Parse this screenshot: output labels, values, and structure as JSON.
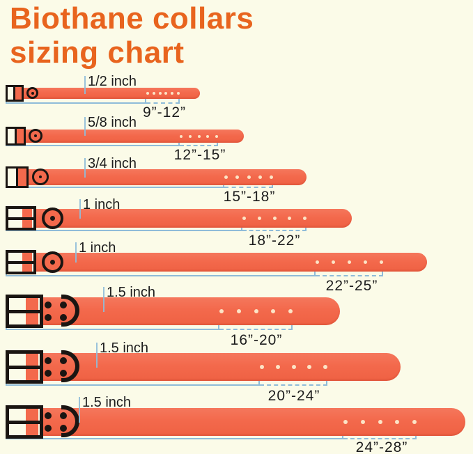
{
  "title": {
    "line1": "Biothane collars",
    "line2": "sizing chart"
  },
  "colors": {
    "background": "#FBFBE8",
    "title": "#E8641E",
    "collar": "#F3694C",
    "collar_light": "#F5775C",
    "collar_dark": "#EF6143",
    "buckle": "#1A1512",
    "measure": "#8FBCD9",
    "hole": "#FCE4C6",
    "text": "#1D1D1D"
  },
  "rows": [
    {
      "width_label": "1/2 inch",
      "size_range": "9”-12”",
      "holes": 6
    },
    {
      "width_label": "5/8 inch",
      "size_range": "12”-15”",
      "holes": 5
    },
    {
      "width_label": "3/4 inch",
      "size_range": "15”-18”",
      "holes": 5
    },
    {
      "width_label": "1 inch",
      "size_range": "18”-22”",
      "holes": 5
    },
    {
      "width_label": "1 inch",
      "size_range": "22”-25”",
      "holes": 5
    },
    {
      "width_label": "1.5 inch",
      "size_range": "16”-20”",
      "holes": 5
    },
    {
      "width_label": "1.5 inch",
      "size_range": "20”-24”",
      "holes": 5
    },
    {
      "width_label": "1.5 inch",
      "size_range": "24”-28”",
      "holes": 5
    }
  ]
}
